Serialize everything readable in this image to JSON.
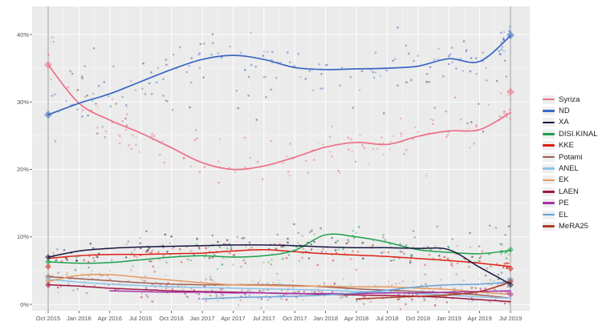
{
  "figure": {
    "background": "#ffffff",
    "panel_background": "#ebebeb",
    "grid_color": "#ffffff",
    "axis_text_color": "#555555",
    "election_line_color": "#adadad"
  },
  "chart_data": {
    "type": "scatter",
    "description": "Opinion polling trends, Greek legislative election 2015-2019: scatter of individual polls with smoothed trend lines per party, election results shown as diamonds on grey vertical lines at Sep 2015 and Jul 2019",
    "xlabel": "",
    "ylabel": "",
    "x_ticks": [
      "Oct 2015",
      "Jan 2016",
      "Apr 2016",
      "Jul 2016",
      "Oct 2016",
      "Jan 2017",
      "Apr 2017",
      "Jul 2017",
      "Oct 2017",
      "Jan 2018",
      "Apr 2018",
      "Jul 2018",
      "Oct 2018",
      "Jan 2019",
      "Apr 2019",
      "Jul 2019"
    ],
    "y_ticks": [
      "0%",
      "10%",
      "20%",
      "30%",
      "40%"
    ],
    "ylim": [
      0,
      44
    ],
    "x_months_total": 45,
    "quarter_step": 3,
    "legend_position": "right",
    "grid": true,
    "series": [
      {
        "name": "Syriza",
        "color": "#ec7086",
        "start_month": 0,
        "values": [
          35.5,
          29.8,
          27.3,
          25.4,
          23.2,
          21.0,
          20.0,
          20.5,
          21.8,
          23.3,
          24.0,
          23.7,
          24.9,
          25.7,
          25.9,
          28.4
        ],
        "scatter": {
          "points": 120,
          "sigma": 1.9,
          "end_cluster": 10
        }
      },
      {
        "name": "ND",
        "color": "#3a67c4",
        "start_month": 0,
        "values": [
          28.1,
          29.8,
          31.2,
          33.0,
          34.8,
          36.3,
          36.9,
          36.3,
          35.1,
          34.8,
          34.9,
          35.0,
          35.3,
          36.4,
          36.0,
          39.8
        ],
        "scatter": {
          "points": 120,
          "sigma": 1.9,
          "end_cluster": 12
        }
      },
      {
        "name": "XA",
        "color": "#171740",
        "start_month": 0,
        "values": [
          7.0,
          7.9,
          8.3,
          8.5,
          8.6,
          8.7,
          8.8,
          8.8,
          8.7,
          8.5,
          8.4,
          8.4,
          8.3,
          8.1,
          5.5,
          3.0
        ],
        "scatter": {
          "points": 85,
          "sigma": 1.0,
          "end_cluster": 4
        }
      },
      {
        "name": "DISI.KINAL",
        "color": "#1da04d",
        "start_month": 0,
        "values": [
          6.3,
          6.1,
          6.2,
          6.6,
          7.0,
          7.2,
          7.0,
          7.2,
          8.0,
          10.3,
          10.0,
          9.2,
          8.1,
          7.7,
          7.5,
          8.0
        ],
        "scatter": {
          "points": 95,
          "sigma": 1.1,
          "end_cluster": 8
        }
      },
      {
        "name": "KKE",
        "color": "#dc1f14",
        "start_month": 0,
        "values": [
          6.8,
          7.2,
          7.4,
          7.4,
          7.5,
          7.6,
          7.9,
          8.1,
          7.8,
          7.5,
          7.3,
          7.1,
          6.8,
          6.5,
          6.1,
          5.6
        ],
        "scatter": {
          "points": 95,
          "sigma": 0.9,
          "end_cluster": 8
        }
      },
      {
        "name": "Potami",
        "color": "#9e5e55",
        "start_month": 0,
        "values": [
          4.1,
          3.8,
          3.5,
          3.2,
          3.0,
          2.9,
          2.9,
          2.9,
          2.8,
          2.6,
          2.3,
          2.1,
          1.9,
          1.7,
          1.4,
          0.9
        ],
        "scatter": {
          "points": 65,
          "sigma": 0.8,
          "end_cluster": 0
        }
      },
      {
        "name": "ANEL",
        "color": "#8cc3e8",
        "start_month": 0,
        "values": [
          3.7,
          3.3,
          3.0,
          2.8,
          2.6,
          2.5,
          2.4,
          2.3,
          2.2,
          2.1,
          1.9,
          1.8,
          1.6,
          1.4,
          1.1,
          0.9
        ],
        "scatter": {
          "points": 60,
          "sigma": 0.7,
          "end_cluster": 0
        }
      },
      {
        "name": "EK",
        "color": "#e59a62",
        "start_month": 0,
        "values": [
          3.4,
          4.3,
          4.4,
          4.0,
          3.6,
          3.2,
          2.9,
          2.8,
          2.7,
          2.7,
          2.6,
          2.6,
          2.4,
          2.2,
          1.8,
          1.5
        ],
        "scatter": {
          "points": 65,
          "sigma": 0.8,
          "end_cluster": 0
        }
      },
      {
        "name": "LAEN",
        "color": "#9e1846",
        "start_month": 0,
        "values": [
          2.9,
          2.7,
          2.4,
          2.2,
          2.0,
          1.9,
          1.8,
          1.7,
          1.6,
          1.5,
          1.4,
          1.3,
          1.2,
          1.0,
          0.7,
          0.4
        ],
        "scatter": {
          "points": 55,
          "sigma": 0.7,
          "end_cluster": 0
        }
      },
      {
        "name": "PE",
        "color": "#a633a6",
        "start_month": 6,
        "values": [
          2.0,
          1.9,
          1.8,
          1.8,
          1.7,
          1.7,
          1.6,
          1.6,
          1.6,
          1.7,
          1.7,
          1.8,
          1.9,
          2.0
        ],
        "scatter": {
          "points": 50,
          "sigma": 0.6,
          "end_cluster": 3
        }
      },
      {
        "name": "EL",
        "color": "#66a3d6",
        "start_month": 15,
        "values": [
          0.8,
          1.0,
          1.1,
          1.2,
          1.4,
          1.7,
          2.1,
          2.6,
          2.9,
          3.0,
          3.3
        ],
        "scatter": {
          "points": 40,
          "sigma": 0.7,
          "end_cluster": 5
        }
      },
      {
        "name": "MeRA25",
        "color": "#b03a24",
        "start_month": 30,
        "values": [
          0.8,
          1.0,
          1.2,
          1.4,
          1.9,
          3.3
        ],
        "scatter": {
          "points": 28,
          "sigma": 0.5,
          "end_cluster": 5
        }
      }
    ],
    "other_points_color": "#50505c",
    "elections": [
      {
        "label": "Sep 2015",
        "month": 0,
        "results": [
          {
            "party": "Syriza",
            "value": 35.5
          },
          {
            "party": "ND",
            "value": 28.1
          },
          {
            "party": "XA",
            "value": 7.0
          },
          {
            "party": "DISI.KINAL",
            "value": 6.3
          },
          {
            "party": "KKE",
            "value": 5.6
          },
          {
            "party": "Potami",
            "value": 4.1
          },
          {
            "party": "ANEL",
            "value": 3.7
          },
          {
            "party": "EK",
            "value": 3.4
          },
          {
            "party": "LAEN",
            "value": 2.9
          }
        ]
      },
      {
        "label": "Jul 2019",
        "month": 45,
        "results": [
          {
            "party": "ND",
            "value": 39.9
          },
          {
            "party": "Syriza",
            "value": 31.5
          },
          {
            "party": "DISI.KINAL",
            "value": 8.1
          },
          {
            "party": "KKE",
            "value": 5.3
          },
          {
            "party": "EL",
            "value": 3.7
          },
          {
            "party": "MeRA25",
            "value": 3.4
          },
          {
            "party": "XA",
            "value": 2.9
          },
          {
            "party": "PE",
            "value": 1.5
          }
        ]
      }
    ]
  },
  "legend": {
    "items": [
      "Syriza",
      "ND",
      "XA",
      "DISI.KINAL",
      "KKE",
      "Potami",
      "ANEL",
      "EK",
      "LAEN",
      "PE",
      "EL",
      "MeRA25"
    ]
  }
}
